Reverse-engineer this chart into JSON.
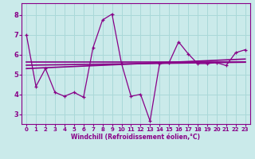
{
  "xlabel": "Windchill (Refroidissement éolien,°C)",
  "bg_color": "#caeaea",
  "grid_color": "#aad8d8",
  "line_color": "#880088",
  "xlim": [
    -0.5,
    23.5
  ],
  "ylim": [
    2.5,
    8.6
  ],
  "yticks": [
    3,
    4,
    5,
    6,
    7,
    8
  ],
  "xticks": [
    0,
    1,
    2,
    3,
    4,
    5,
    6,
    7,
    8,
    9,
    10,
    11,
    12,
    13,
    14,
    15,
    16,
    17,
    18,
    19,
    20,
    21,
    22,
    23
  ],
  "main_line_x": [
    0,
    1,
    2,
    3,
    4,
    5,
    6,
    7,
    8,
    9,
    10,
    11,
    12,
    13,
    14,
    15,
    16,
    17,
    18,
    19,
    20,
    21,
    22,
    23
  ],
  "main_line_y": [
    7.0,
    4.4,
    5.3,
    4.1,
    3.9,
    4.1,
    3.85,
    6.35,
    7.75,
    8.05,
    5.55,
    3.9,
    4.0,
    2.65,
    5.55,
    5.6,
    6.65,
    6.05,
    5.55,
    5.55,
    5.6,
    5.45,
    6.1,
    6.25
  ],
  "trend1_x": [
    0,
    23
  ],
  "trend1_y": [
    5.62,
    5.62
  ],
  "trend2_x": [
    0,
    23
  ],
  "trend2_y": [
    5.3,
    5.78
  ],
  "trend3_x": [
    0,
    23
  ],
  "trend3_y": [
    5.47,
    5.62
  ]
}
